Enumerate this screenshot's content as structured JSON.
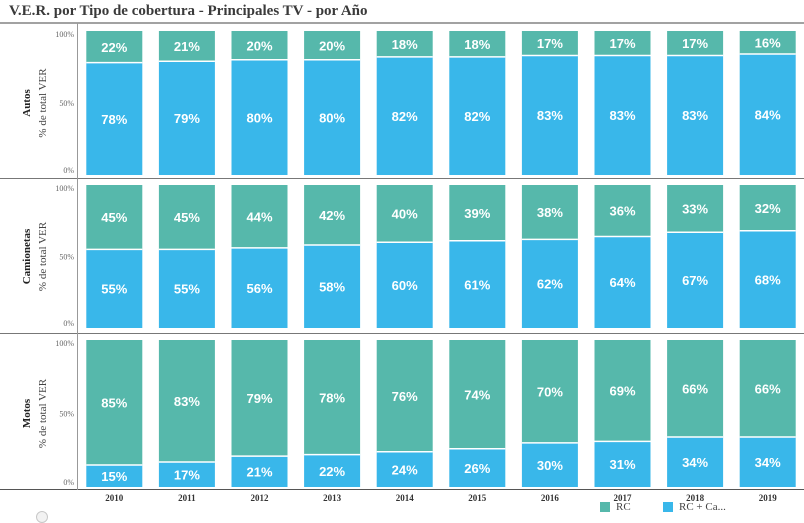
{
  "title": "V.E.R. por Tipo de cobertura - Principales TV - por Año",
  "colors": {
    "rc": "#56b8ab",
    "rc_ca": "#39b7ea",
    "label": "#ffffff"
  },
  "legend": [
    {
      "name": "RC",
      "color": "#56b8ab"
    },
    {
      "name": "RC + Ca...",
      "color": "#39b7ea"
    }
  ],
  "chart_data": {
    "type": "bar",
    "stacked": true,
    "x": [
      "2010",
      "2011",
      "2012",
      "2013",
      "2014",
      "2015",
      "2016",
      "2017",
      "2018",
      "2019"
    ],
    "ylabel": "% de total VER",
    "ylim": [
      0,
      100
    ],
    "yticks": [
      "0%",
      "50%",
      "100%"
    ],
    "panels": [
      {
        "name": "Autos",
        "series": [
          {
            "name": "RC + Ca...",
            "values": [
              78,
              79,
              80,
              80,
              82,
              82,
              83,
              83,
              83,
              84
            ]
          },
          {
            "name": "RC",
            "values": [
              22,
              21,
              20,
              20,
              18,
              18,
              17,
              17,
              17,
              16
            ]
          }
        ]
      },
      {
        "name": "Camionetas",
        "series": [
          {
            "name": "RC + Ca...",
            "values": [
              55,
              55,
              56,
              58,
              60,
              61,
              62,
              64,
              67,
              68
            ]
          },
          {
            "name": "RC",
            "values": [
              45,
              45,
              44,
              42,
              40,
              39,
              38,
              36,
              33,
              32
            ]
          }
        ]
      },
      {
        "name": "Motos",
        "series": [
          {
            "name": "RC + Ca...",
            "values": [
              15,
              17,
              21,
              22,
              24,
              26,
              30,
              31,
              34,
              34
            ]
          },
          {
            "name": "RC",
            "values": [
              85,
              83,
              79,
              78,
              76,
              74,
              70,
              69,
              66,
              66
            ]
          }
        ]
      }
    ]
  }
}
